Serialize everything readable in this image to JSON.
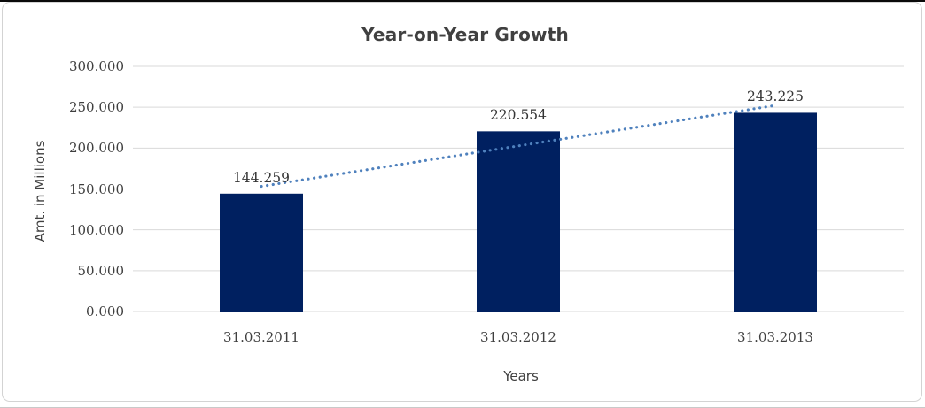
{
  "frame": {
    "background": "#FFFFFF",
    "top_border_color": "#0A0A0A",
    "chart_border_color": "#D3D3D3"
  },
  "chart_data": {
    "type": "bar",
    "title": "Year-on-Year Growth",
    "xlabel": "Years",
    "ylabel": "Amt. in Millions",
    "categories": [
      "31.03.2011",
      "31.03.2012",
      "31.03.2013"
    ],
    "values": [
      144.259,
      220.554,
      243.225
    ],
    "value_labels": [
      "144.259",
      "220.554",
      "243.225"
    ],
    "ytick_values": [
      0,
      50,
      100,
      150,
      200,
      250,
      300
    ],
    "ytick_labels": [
      "0.000",
      "50.000",
      "100.000",
      "150.000",
      "200.000",
      "250.000",
      "300.000"
    ],
    "ylim": [
      0,
      300
    ],
    "grid": true,
    "legend": "none",
    "bar_color": "#002060",
    "gridline_color": "#D9D9D9",
    "text_color": "#404040",
    "trendline": {
      "type": "linear",
      "style": "dotted",
      "color": "#4F81BD",
      "fit_values": [
        153.2,
        252.2
      ]
    }
  }
}
